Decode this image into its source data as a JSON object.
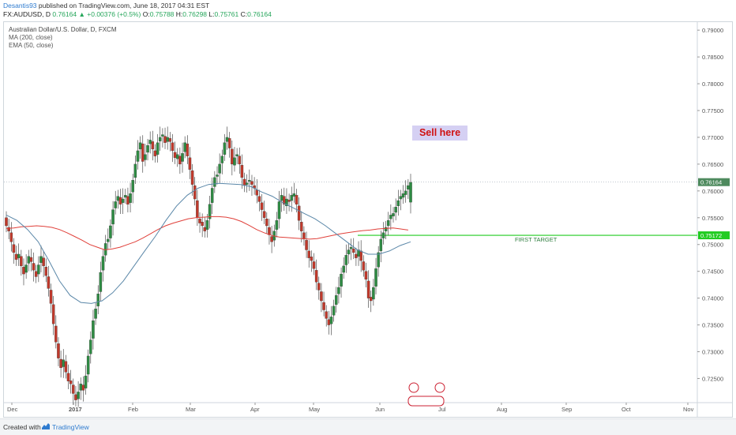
{
  "header": {
    "user": "Desantis93",
    "published": "published on TradingView.com, June 18, 2017 04:31 EST",
    "symbol": "FX:AUDUSD, D",
    "last": "0.76164",
    "change": "+0.00376 (+0.5%)",
    "o_label": "O:",
    "o": "0.75788",
    "h_label": "H:",
    "h": "0.76298",
    "l_label": "L:",
    "l": "0.75761",
    "c_label": "C:",
    "c": "0.76164"
  },
  "legend": {
    "title": "Australian Dollar/U.S. Dollar, D, FXCM",
    "ma": "MA (200, close)",
    "ema": "EMA (50, close)"
  },
  "annotations": {
    "sell": "Sell here",
    "first_target": "FIRST TARGET"
  },
  "footer": {
    "created": "Created with",
    "brand": "TradingView"
  },
  "colors": {
    "up": "#2e8b43",
    "down": "#c0392b",
    "ma200": "#e0403a",
    "ema50": "#5a87a8",
    "target": "#22cc22",
    "price_tag": "#4e8a5e",
    "axis": "#555555"
  },
  "chart_data": {
    "type": "candlestick",
    "title": "Australian Dollar/U.S. Dollar, D, FXCM",
    "x_ticks": [
      "Dec",
      "2017",
      "Feb",
      "Mar",
      "Apr",
      "May",
      "Jun",
      "Jul",
      "Aug",
      "Sep",
      "Oct",
      "Nov"
    ],
    "y_ticks": [
      "0.79000",
      "0.78500",
      "0.78000",
      "0.77500",
      "0.77000",
      "0.76500",
      "0.76000",
      "0.75500",
      "0.75000",
      "0.74500",
      "0.74000",
      "0.73500",
      "0.73000",
      "0.72500"
    ],
    "ylim": [
      0.7205,
      0.7915
    ],
    "last_price": "0.76164",
    "target_price": "0.75172",
    "closes": [
      0.7535,
      0.7525,
      0.7505,
      0.7485,
      0.7472,
      0.7482,
      0.746,
      0.7445,
      0.7462,
      0.7478,
      0.7468,
      0.7452,
      0.744,
      0.7462,
      0.7478,
      0.746,
      0.7442,
      0.7418,
      0.739,
      0.7352,
      0.7318,
      0.7288,
      0.727,
      0.7285,
      0.7262,
      0.7245,
      0.724,
      0.7222,
      0.721,
      0.7225,
      0.724,
      0.7228,
      0.7255,
      0.7292,
      0.7322,
      0.7358,
      0.738,
      0.7408,
      0.7448,
      0.7478,
      0.7502,
      0.751,
      0.7535,
      0.7565,
      0.758,
      0.759,
      0.7575,
      0.7585,
      0.7592,
      0.7575,
      0.7595,
      0.762,
      0.765,
      0.7675,
      0.769,
      0.7655,
      0.7668,
      0.7685,
      0.7695,
      0.7678,
      0.7665,
      0.769,
      0.77,
      0.7705,
      0.769,
      0.77,
      0.7692,
      0.7675,
      0.7662,
      0.7668,
      0.765,
      0.767,
      0.769,
      0.7665,
      0.764,
      0.7612,
      0.7585,
      0.755,
      0.754,
      0.7535,
      0.7525,
      0.7545,
      0.7575,
      0.7605,
      0.7625,
      0.763,
      0.765,
      0.7665,
      0.769,
      0.77,
      0.768,
      0.765,
      0.7662,
      0.7668,
      0.765,
      0.7625,
      0.761,
      0.7615,
      0.762,
      0.7612,
      0.7605,
      0.7592,
      0.758,
      0.7565,
      0.755,
      0.7535,
      0.7518,
      0.7505,
      0.7525,
      0.7545,
      0.758,
      0.7592,
      0.7575,
      0.7585,
      0.758,
      0.7592,
      0.7595,
      0.7575,
      0.7545,
      0.7525,
      0.751,
      0.749,
      0.7475,
      0.747,
      0.7455,
      0.743,
      0.7415,
      0.7395,
      0.7378,
      0.7362,
      0.735,
      0.7365,
      0.7385,
      0.7405,
      0.742,
      0.7445,
      0.746,
      0.748,
      0.749,
      0.7495,
      0.7485,
      0.7475,
      0.749,
      0.747,
      0.7452,
      0.7435,
      0.74,
      0.7395,
      0.742,
      0.7455,
      0.7485,
      0.751,
      0.7522,
      0.7532,
      0.7545,
      0.7555,
      0.7558,
      0.757,
      0.7582,
      0.759,
      0.7595,
      0.76,
      0.761,
      0.7616
    ],
    "opens": [
      0.755,
      0.7532,
      0.7522,
      0.75,
      0.7482,
      0.7475,
      0.7478,
      0.7458,
      0.7448,
      0.7465,
      0.7476,
      0.7465,
      0.745,
      0.7445,
      0.7466,
      0.7475,
      0.7458,
      0.744,
      0.7415,
      0.7388,
      0.7348,
      0.7315,
      0.7286,
      0.7272,
      0.7282,
      0.726,
      0.7246,
      0.7238,
      0.722,
      0.7212,
      0.7228,
      0.7238,
      0.7232,
      0.7258,
      0.7296,
      0.7325,
      0.7362,
      0.7385,
      0.7412,
      0.7452,
      0.748,
      0.7505,
      0.7512,
      0.7538,
      0.7568,
      0.7582,
      0.7588,
      0.7578,
      0.7588,
      0.759,
      0.7578,
      0.7598,
      0.7625,
      0.7655,
      0.7678,
      0.7688,
      0.7658,
      0.7672,
      0.7688,
      0.7692,
      0.7675,
      0.7668,
      0.7693,
      0.7702,
      0.7702,
      0.7692,
      0.7698,
      0.769,
      0.7672,
      0.766,
      0.7665,
      0.7655,
      0.7673,
      0.7688,
      0.7662,
      0.7638,
      0.761,
      0.7582,
      0.7548,
      0.7542,
      0.7532,
      0.7528,
      0.7548,
      0.7578,
      0.7608,
      0.7627,
      0.7633,
      0.7652,
      0.7668,
      0.7692,
      0.7698,
      0.7678,
      0.7648,
      0.7665,
      0.7665,
      0.7648,
      0.7622,
      0.7612,
      0.7618,
      0.7618,
      0.761,
      0.7602,
      0.759,
      0.7578,
      0.7562,
      0.7548,
      0.7532,
      0.7515,
      0.7508,
      0.7528,
      0.7548,
      0.7582,
      0.759,
      0.7572,
      0.7583,
      0.7582,
      0.759,
      0.7592,
      0.7572,
      0.7542,
      0.7522,
      0.7508,
      0.7488,
      0.7477,
      0.7468,
      0.7452,
      0.7428,
      0.7412,
      0.7392,
      0.7375,
      0.736,
      0.7352,
      0.7368,
      0.7388,
      0.7408,
      0.7422,
      0.7448,
      0.7462,
      0.7482,
      0.7492,
      0.7492,
      0.7482,
      0.7478,
      0.7488,
      0.7468,
      0.745,
      0.7432,
      0.7402,
      0.7398,
      0.7422,
      0.7458,
      0.7488,
      0.7512,
      0.7525,
      0.7535,
      0.7548,
      0.7553,
      0.756,
      0.7572,
      0.7585,
      0.7588,
      0.7593,
      0.7603,
      0.7579
    ],
    "ma200": [
      0.753,
      0.7531,
      0.7533,
      0.7534,
      0.7535,
      0.7534,
      0.7532,
      0.7528,
      0.7522,
      0.7515,
      0.7508,
      0.75,
      0.7495,
      0.749,
      0.7492,
      0.7495,
      0.75,
      0.7505,
      0.7512,
      0.752,
      0.7528,
      0.7535,
      0.754,
      0.7544,
      0.7548,
      0.755,
      0.7551,
      0.7552,
      0.7552,
      0.7551,
      0.7548,
      0.7543,
      0.7536,
      0.7528,
      0.7522,
      0.7517,
      0.7514,
      0.7513,
      0.7512,
      0.7511,
      0.751,
      0.7511,
      0.7514,
      0.7517,
      0.752,
      0.7522,
      0.7524,
      0.7526,
      0.7527,
      0.7529,
      0.753,
      0.7531,
      0.7529,
      0.7527
    ],
    "ema50": [
      0.7555,
      0.7545,
      0.7528,
      0.7505,
      0.747,
      0.7432,
      0.7405,
      0.7392,
      0.739,
      0.7395,
      0.741,
      0.7432,
      0.746,
      0.7488,
      0.7515,
      0.7545,
      0.7572,
      0.7592,
      0.7605,
      0.7612,
      0.7614,
      0.7613,
      0.7612,
      0.7608,
      0.7598,
      0.759,
      0.7578,
      0.7568,
      0.7558,
      0.7548,
      0.7535,
      0.752,
      0.7505,
      0.749,
      0.7482,
      0.7482,
      0.7488,
      0.7498,
      0.7505
    ],
    "y_axis_labels_extra": [
      "0.76164",
      "0.75172"
    ]
  }
}
